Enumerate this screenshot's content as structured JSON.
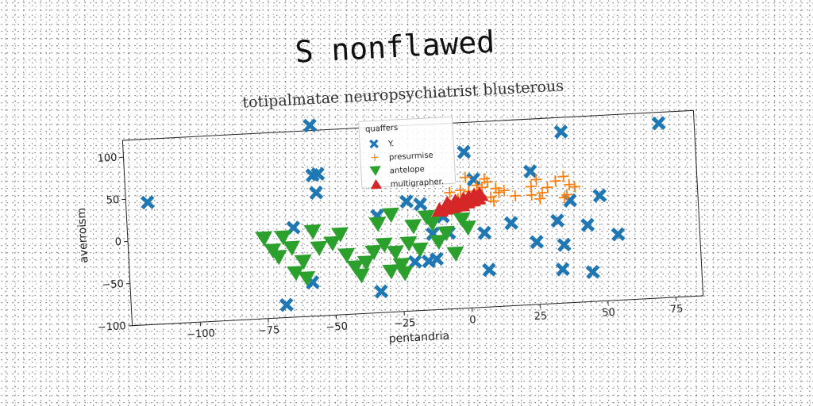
{
  "chart_data": {
    "type": "scatter",
    "title": "S nonflawed",
    "subtitle": "totipalmatae neuropsychiatrist blusterous",
    "xlabel": "pentandria",
    "ylabel": "averroism",
    "xlim": [
      -125,
      85
    ],
    "ylim": [
      -100,
      120
    ],
    "xticks": [
      "−100",
      "−75",
      "−50",
      "−25",
      "0",
      "25",
      "50",
      "75"
    ],
    "xtick_values": [
      -100,
      -75,
      -50,
      -25,
      0,
      25,
      50,
      75
    ],
    "yticks": [
      "100",
      "50",
      "0",
      "−50",
      "−100"
    ],
    "ytick_values": [
      100,
      50,
      0,
      -50,
      -100
    ],
    "legend_title": "quaffers",
    "legend_position": "upper-center",
    "series": [
      {
        "name": "Y.",
        "marker": "x",
        "color": "#1f77b4",
        "points": [
          [
            -117,
            45
          ],
          [
            -56,
            126
          ],
          [
            -56,
            67
          ],
          [
            -54,
            68
          ],
          [
            -55,
            46
          ],
          [
            -64,
            6
          ],
          [
            -58,
            -60
          ],
          [
            -68,
            -85
          ],
          [
            -33,
            15
          ],
          [
            -33,
            -75
          ],
          [
            -22,
            30
          ],
          [
            -17,
            26
          ],
          [
            -13,
            -10
          ],
          [
            -15,
            -42
          ],
          [
            -12,
            -40
          ],
          [
            -9,
            10
          ],
          [
            -7,
            -10
          ],
          [
            -20,
            -42
          ],
          [
            0,
            85
          ],
          [
            3,
            52
          ],
          [
            6,
            -12
          ],
          [
            7,
            -56
          ],
          [
            16,
            -2
          ],
          [
            24,
            58
          ],
          [
            25,
            -26
          ],
          [
            36,
            103
          ],
          [
            38,
            21
          ],
          [
            33,
            -2
          ],
          [
            35,
            -31
          ],
          [
            34,
            -60
          ],
          [
            44,
            -9
          ],
          [
            45,
            -65
          ],
          [
            49,
            25
          ],
          [
            55,
            -22
          ],
          [
            72,
            107
          ]
        ]
      },
      {
        "name": "presurmise",
        "marker": "+",
        "color": "#ff7f0e",
        "points": [
          [
            -6,
            38
          ],
          [
            -2,
            40
          ],
          [
            1,
            38
          ],
          [
            4,
            45
          ],
          [
            3,
            32
          ],
          [
            6,
            42
          ],
          [
            8,
            48
          ],
          [
            9,
            30
          ],
          [
            12,
            35
          ],
          [
            14,
            37
          ],
          [
            2,
            25
          ],
          [
            5,
            28
          ],
          [
            7,
            52
          ],
          [
            18,
            30
          ],
          [
            24,
            40
          ],
          [
            26,
            48
          ],
          [
            28,
            32
          ],
          [
            30,
            38
          ],
          [
            24,
            30
          ],
          [
            33,
            45
          ],
          [
            36,
            50
          ],
          [
            38,
            40
          ],
          [
            37,
            28
          ],
          [
            40,
            37
          ],
          [
            36,
            25
          ],
          [
            11,
            40
          ],
          [
            -3,
            30
          ],
          [
            0,
            55
          ],
          [
            27,
            25
          ],
          [
            10,
            25
          ]
        ]
      },
      {
        "name": "antelope",
        "marker": "v",
        "color": "#2ca02c",
        "points": [
          [
            -75,
            -5
          ],
          [
            -72,
            -20
          ],
          [
            -68,
            -5
          ],
          [
            -70,
            -28
          ],
          [
            -65,
            -18
          ],
          [
            -61,
            -35
          ],
          [
            -64,
            -48
          ],
          [
            -60,
            -55
          ],
          [
            -57,
            0
          ],
          [
            -55,
            -20
          ],
          [
            -50,
            -15
          ],
          [
            -47,
            -5
          ],
          [
            -45,
            -30
          ],
          [
            -42,
            -45
          ],
          [
            -40,
            -55
          ],
          [
            -38,
            -40
          ],
          [
            -35,
            -28
          ],
          [
            -33,
            5
          ],
          [
            -31,
            -20
          ],
          [
            -28,
            15
          ],
          [
            -27,
            -30
          ],
          [
            -25,
            -45
          ],
          [
            -22,
            -20
          ],
          [
            -20,
            0
          ],
          [
            -18,
            -28
          ],
          [
            -15,
            10
          ],
          [
            -13,
            2
          ],
          [
            -11,
            -20
          ],
          [
            -8,
            -10
          ],
          [
            -5,
            -35
          ],
          [
            -2,
            5
          ],
          [
            0,
            -5
          ],
          [
            -24,
            -55
          ],
          [
            -29,
            -52
          ]
        ]
      },
      {
        "name": "multigrapher.",
        "marker": "^",
        "color": "#d62728",
        "points": [
          [
            -10,
            18
          ],
          [
            -8,
            20
          ],
          [
            -5,
            22
          ],
          [
            -3,
            24
          ],
          [
            0,
            26
          ],
          [
            2,
            28
          ],
          [
            4,
            30
          ],
          [
            -7,
            25
          ],
          [
            -4,
            27
          ],
          [
            -1,
            29
          ],
          [
            1,
            31
          ],
          [
            3,
            33
          ],
          [
            -6,
            21
          ],
          [
            -2,
            23
          ],
          [
            5,
            34
          ]
        ]
      }
    ]
  }
}
